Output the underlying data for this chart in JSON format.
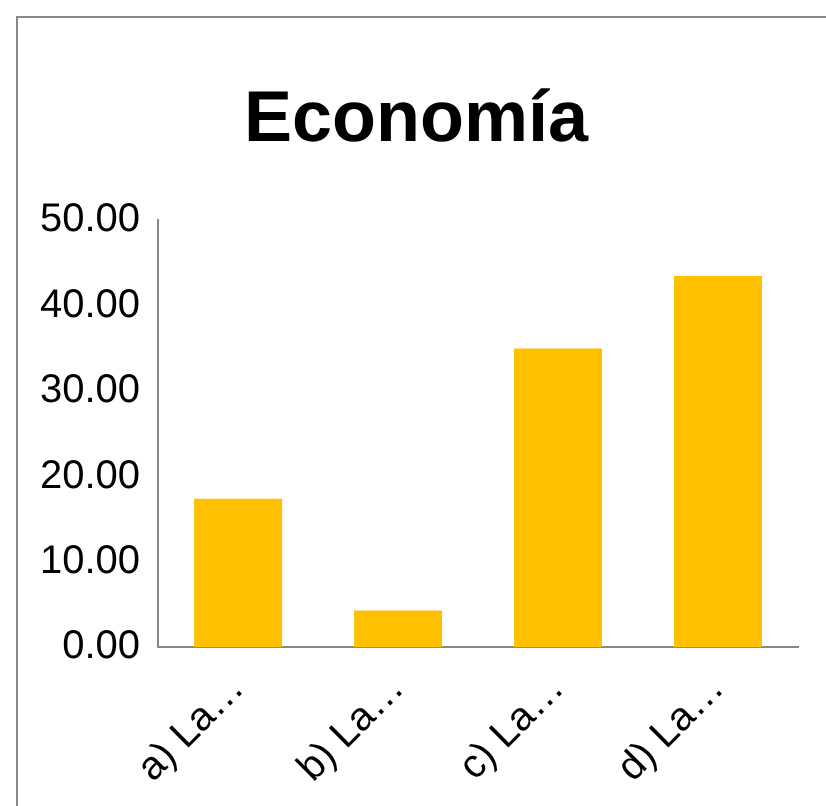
{
  "chart_data": {
    "type": "bar",
    "title": "Economía",
    "categories": [
      "a) La…",
      "b) La…",
      "c) La…",
      "d) La…"
    ],
    "values": [
      17.4,
      4.3,
      35,
      43.5
    ],
    "color": "#ffc000",
    "ylim": [
      0,
      50
    ],
    "yticks": [
      {
        "value": 0,
        "label": "0.00"
      },
      {
        "value": 10,
        "label": "10.00"
      },
      {
        "value": 20,
        "label": "20.00"
      },
      {
        "value": 30,
        "label": "30.00"
      },
      {
        "value": 40,
        "label": "40.00"
      },
      {
        "value": 50,
        "label": "50.00"
      }
    ],
    "grid": false,
    "legend": false
  }
}
